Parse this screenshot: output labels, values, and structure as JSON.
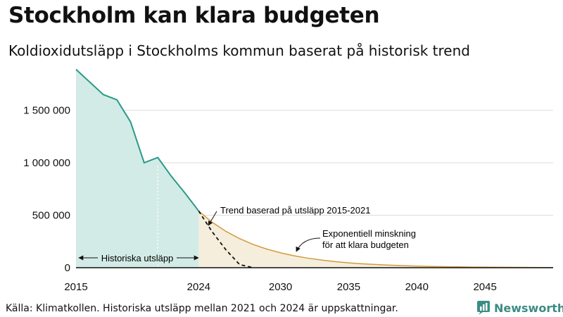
{
  "header": {
    "title": "Stockholm kan klara budgeten",
    "subtitle": "Koldioxidutsläpp i Stockholms kommun baserat på historisk trend"
  },
  "footer": {
    "source": "Källa: Klimatkollen. Historiska utsläpp mellan 2021 och 2024 är uppskattningar.",
    "brand": "Newsworthy"
  },
  "colors": {
    "historical_line": "#2a9a8a",
    "historical_fill": "#d2ebe6",
    "budget_line": "#d39a3a",
    "budget_fill": "#f5eedd",
    "trend_line": "#111111",
    "grid": "#dddddd",
    "brand": "#3c8c84"
  },
  "chart_data": {
    "type": "area",
    "xlim": [
      2015,
      2050
    ],
    "ylim": [
      0,
      1900000
    ],
    "grid": true,
    "x_ticks": [
      2015,
      2024,
      2030,
      2035,
      2040,
      2045
    ],
    "x_tick_labels": [
      "2015",
      "2024",
      "2030",
      "2035",
      "2040",
      "2045"
    ],
    "y_ticks": [
      0,
      500000,
      1000000,
      1500000
    ],
    "y_tick_labels": [
      "0",
      "500 000",
      "1 000 000",
      "1 500 000"
    ],
    "series": [
      {
        "key": "historical",
        "x": [
          2015,
          2016,
          2017,
          2018,
          2019,
          2020,
          2021,
          2022,
          2023,
          2024
        ],
        "values": [
          1890000,
          1770000,
          1650000,
          1600000,
          1390000,
          1000000,
          1050000,
          870000,
          710000,
          540000
        ]
      },
      {
        "key": "budget",
        "x": [
          2024,
          2025,
          2026,
          2027,
          2028,
          2029,
          2030,
          2031,
          2032,
          2033,
          2034,
          2035,
          2036,
          2037,
          2038,
          2039,
          2040,
          2041,
          2042,
          2043,
          2044,
          2045,
          2046,
          2047,
          2048,
          2049,
          2050
        ],
        "values": [
          540000,
          432000,
          346000,
          277000,
          221000,
          177000,
          142000,
          113000,
          91000,
          73000,
          58000,
          46000,
          37000,
          30000,
          24000,
          19000,
          15000,
          12000,
          10000,
          8000,
          6000,
          5000,
          4000,
          3000,
          2500,
          2000,
          1600
        ]
      },
      {
        "key": "trend",
        "x": [
          2024,
          2025,
          2026,
          2027,
          2028
        ],
        "values": [
          540000,
          340000,
          170000,
          30000,
          0
        ]
      }
    ],
    "annotations": {
      "historical": "Historiska utsläpp",
      "trend": "Trend baserad på utsläpp 2015-2021",
      "budget_line1": "Exponentiell minskning",
      "budget_line2": "för att klara budgeten"
    }
  }
}
